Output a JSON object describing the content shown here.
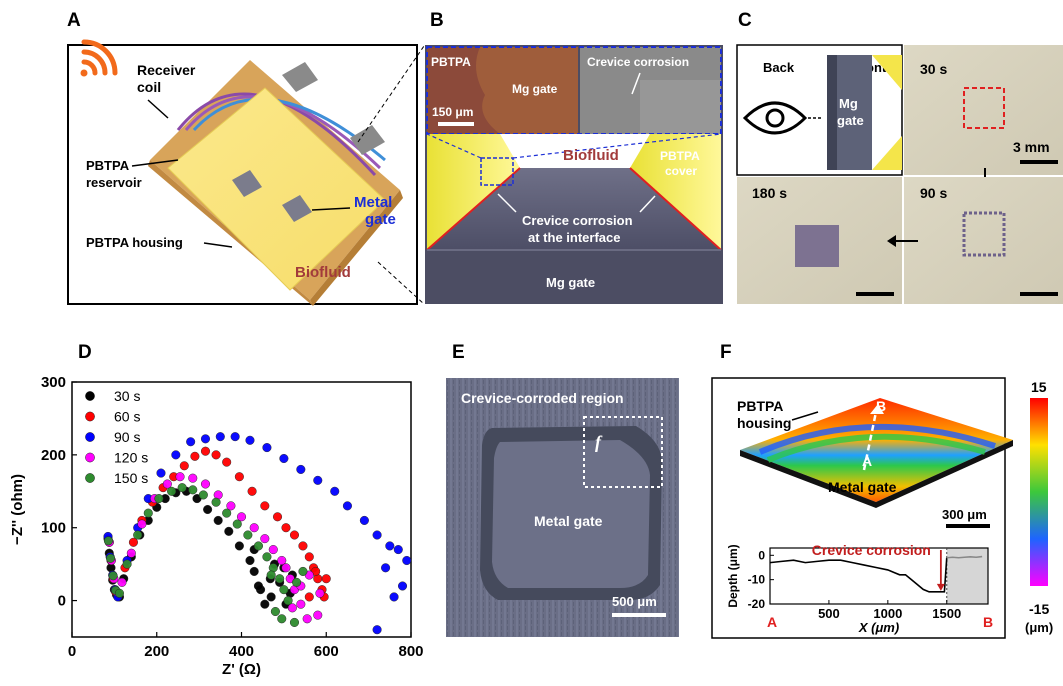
{
  "panels": {
    "A": "A",
    "B": "B",
    "C": "C",
    "D": "D",
    "E": "E",
    "F": "F"
  },
  "panel_a": {
    "receiver_coil": [
      "Receiver",
      "coil"
    ],
    "pbtpa_reservoir": [
      "PBTPA",
      "reservoir"
    ],
    "metal_gate": [
      "Metal",
      "gate"
    ],
    "pbtpa_housing": "PBTPA housing",
    "biofluid": "Biofluid"
  },
  "panel_b": {
    "pbtpa": "PBTPA",
    "mg_gate_inset": "Mg gate",
    "crevice_corrosion_inset": "Crevice corrosion",
    "scale_bar": "150 μm",
    "biofluid": "Biofluid",
    "pbtpa_cover": [
      "PBTPA",
      "cover"
    ],
    "crevice_interface": [
      "Crevice corrosion",
      "at the interface"
    ],
    "mg_gate_bottom": "Mg gate"
  },
  "panel_c": {
    "back": "Back",
    "front": "Front",
    "mg_gate": [
      "Mg",
      "gate"
    ],
    "t30": "30 s",
    "t90": "90 s",
    "t180": "180 s",
    "scale_bar": "3 mm"
  },
  "panel_e": {
    "title": "Crevice-corroded region",
    "metal_gate": "Metal gate",
    "f_label": "f",
    "scale_bar": "500 μm"
  },
  "panel_f": {
    "pbtpa_housing": [
      "PBTPA",
      "housing"
    ],
    "metal_gate": "Metal gate",
    "point_a": "A",
    "point_b": "B",
    "scale_bar": "300 μm",
    "colorbar_max": "15",
    "colorbar_min": "-15",
    "colorbar_unit": "(μm)",
    "colors": {
      "high": "#ff0000",
      "mid_high": "#ffe000",
      "mid": "#3cc83c",
      "mid_low": "#1e64ff",
      "low": "#ff00ff"
    }
  },
  "chart_data": [
    {
      "type": "scatter",
      "panel": "D",
      "title": "",
      "xlabel": "Z' (Ω)",
      "ylabel": "−Z'' (ohm)",
      "xlim": [
        0,
        800
      ],
      "ylim": [
        -50,
        300
      ],
      "xticks": [
        "0",
        "200",
        "400",
        "600",
        "800"
      ],
      "yticks": [
        "0",
        "100",
        "200",
        "300"
      ],
      "legend_position": "top-left",
      "series": [
        {
          "name": "30 s",
          "color": "#000000",
          "points": [
            [
              85,
              85
            ],
            [
              88,
              65
            ],
            [
              92,
              45
            ],
            [
              96,
              28
            ],
            [
              100,
              15
            ],
            [
              105,
              8
            ],
            [
              112,
              5
            ],
            [
              122,
              30
            ],
            [
              140,
              60
            ],
            [
              160,
              90
            ],
            [
              180,
              110
            ],
            [
              200,
              128
            ],
            [
              220,
              140
            ],
            [
              245,
              148
            ],
            [
              270,
              150
            ],
            [
              295,
              140
            ],
            [
              320,
              125
            ],
            [
              345,
              110
            ],
            [
              370,
              95
            ],
            [
              395,
              75
            ],
            [
              420,
              55
            ],
            [
              430,
              40
            ],
            [
              445,
              15
            ],
            [
              455,
              -5
            ],
            [
              468,
              30
            ],
            [
              478,
              50
            ],
            [
              490,
              25
            ],
            [
              505,
              -5
            ],
            [
              515,
              10
            ],
            [
              520,
              35
            ],
            [
              500,
              45
            ],
            [
              430,
              70
            ],
            [
              440,
              20
            ],
            [
              470,
              5
            ]
          ]
        },
        {
          "name": "60 s",
          "color": "#ff0000",
          "points": [
            [
              88,
              80
            ],
            [
              92,
              55
            ],
            [
              97,
              30
            ],
            [
              103,
              12
            ],
            [
              110,
              8
            ],
            [
              125,
              45
            ],
            [
              145,
              80
            ],
            [
              165,
              110
            ],
            [
              190,
              135
            ],
            [
              215,
              155
            ],
            [
              240,
              170
            ],
            [
              265,
              185
            ],
            [
              290,
              198
            ],
            [
              315,
              205
            ],
            [
              340,
              200
            ],
            [
              365,
              190
            ],
            [
              395,
              170
            ],
            [
              425,
              150
            ],
            [
              455,
              130
            ],
            [
              485,
              115
            ],
            [
              505,
              100
            ],
            [
              525,
              90
            ],
            [
              545,
              75
            ],
            [
              560,
              60
            ],
            [
              570,
              45
            ],
            [
              580,
              30
            ],
            [
              590,
              15
            ],
            [
              600,
              30
            ],
            [
              595,
              5
            ],
            [
              575,
              40
            ],
            [
              560,
              5
            ]
          ]
        },
        {
          "name": "90 s",
          "color": "#0000ff",
          "points": [
            [
              85,
              88
            ],
            [
              90,
              60
            ],
            [
              96,
              35
            ],
            [
              102,
              15
            ],
            [
              108,
              5
            ],
            [
              130,
              55
            ],
            [
              155,
              100
            ],
            [
              180,
              140
            ],
            [
              210,
              175
            ],
            [
              245,
              200
            ],
            [
              280,
              218
            ],
            [
              315,
              222
            ],
            [
              350,
              225
            ],
            [
              385,
              225
            ],
            [
              420,
              220
            ],
            [
              460,
              210
            ],
            [
              500,
              195
            ],
            [
              540,
              180
            ],
            [
              580,
              165
            ],
            [
              620,
              150
            ],
            [
              650,
              130
            ],
            [
              690,
              110
            ],
            [
              720,
              90
            ],
            [
              750,
              75
            ],
            [
              770,
              70
            ],
            [
              790,
              55
            ],
            [
              780,
              20
            ],
            [
              760,
              5
            ],
            [
              720,
              -40
            ],
            [
              740,
              45
            ]
          ]
        },
        {
          "name": "120 s",
          "color": "#ff00ff",
          "points": [
            [
              88,
              80
            ],
            [
              93,
              55
            ],
            [
              99,
              30
            ],
            [
              106,
              12
            ],
            [
              118,
              25
            ],
            [
              140,
              65
            ],
            [
              165,
              105
            ],
            [
              195,
              140
            ],
            [
              225,
              160
            ],
            [
              255,
              170
            ],
            [
              285,
              168
            ],
            [
              315,
              160
            ],
            [
              345,
              145
            ],
            [
              375,
              130
            ],
            [
              400,
              115
            ],
            [
              430,
              100
            ],
            [
              455,
              85
            ],
            [
              475,
              70
            ],
            [
              495,
              55
            ],
            [
              505,
              45
            ],
            [
              515,
              30
            ],
            [
              525,
              15
            ],
            [
              540,
              -5
            ],
            [
              555,
              -25
            ],
            [
              580,
              -20
            ],
            [
              520,
              -10
            ],
            [
              540,
              20
            ],
            [
              560,
              35
            ],
            [
              585,
              10
            ]
          ]
        },
        {
          "name": "150 s",
          "color": "#2e8b2e",
          "points": [
            [
              86,
              82
            ],
            [
              91,
              58
            ],
            [
              97,
              34
            ],
            [
              103,
              14
            ],
            [
              112,
              10
            ],
            [
              130,
              50
            ],
            [
              155,
              90
            ],
            [
              180,
              120
            ],
            [
              205,
              140
            ],
            [
              235,
              150
            ],
            [
              260,
              155
            ],
            [
              285,
              152
            ],
            [
              310,
              145
            ],
            [
              340,
              135
            ],
            [
              365,
              120
            ],
            [
              390,
              105
            ],
            [
              415,
              90
            ],
            [
              440,
              75
            ],
            [
              460,
              60
            ],
            [
              475,
              45
            ],
            [
              490,
              30
            ],
            [
              500,
              15
            ],
            [
              510,
              0
            ],
            [
              480,
              -15
            ],
            [
              495,
              -25
            ],
            [
              525,
              -30
            ],
            [
              530,
              25
            ],
            [
              545,
              40
            ],
            [
              470,
              35
            ]
          ]
        }
      ]
    },
    {
      "type": "line",
      "panel": "F",
      "title": "Crevice corrosion",
      "xlabel": "X (μm)",
      "ylabel": "Depth (μm)",
      "xlim": [
        0,
        1850
      ],
      "ylim": [
        -20,
        3
      ],
      "xticks": [
        "500",
        "1000",
        "1500"
      ],
      "yticks": [
        "0",
        "-10",
        "-20"
      ],
      "x_endpoints": [
        "A",
        "B"
      ],
      "series": [
        {
          "name": "profile",
          "color": "#000000",
          "x": [
            0,
            100,
            200,
            300,
            400,
            500,
            600,
            700,
            800,
            900,
            1000,
            1050,
            1100,
            1150,
            1200,
            1250,
            1300,
            1350,
            1400,
            1450,
            1480,
            1500
          ],
          "y": [
            -3,
            -2.5,
            -2,
            -3,
            -2.5,
            -2,
            -2,
            -3,
            -4,
            -5,
            -6,
            -7,
            -8,
            -8,
            -10,
            -12,
            -14,
            -15,
            -15,
            -15,
            -15,
            -1
          ]
        },
        {
          "name": "shaded",
          "color": "#888888",
          "x": [
            1500,
            1550,
            1600,
            1650,
            1700,
            1750,
            1800
          ],
          "y": [
            -1,
            -0.8,
            -1,
            -0.8,
            -0.6,
            -0.8,
            -0.5
          ]
        }
      ],
      "annotation": {
        "text": "Crevice corrosion",
        "x": 1450,
        "y": -15
      }
    }
  ]
}
